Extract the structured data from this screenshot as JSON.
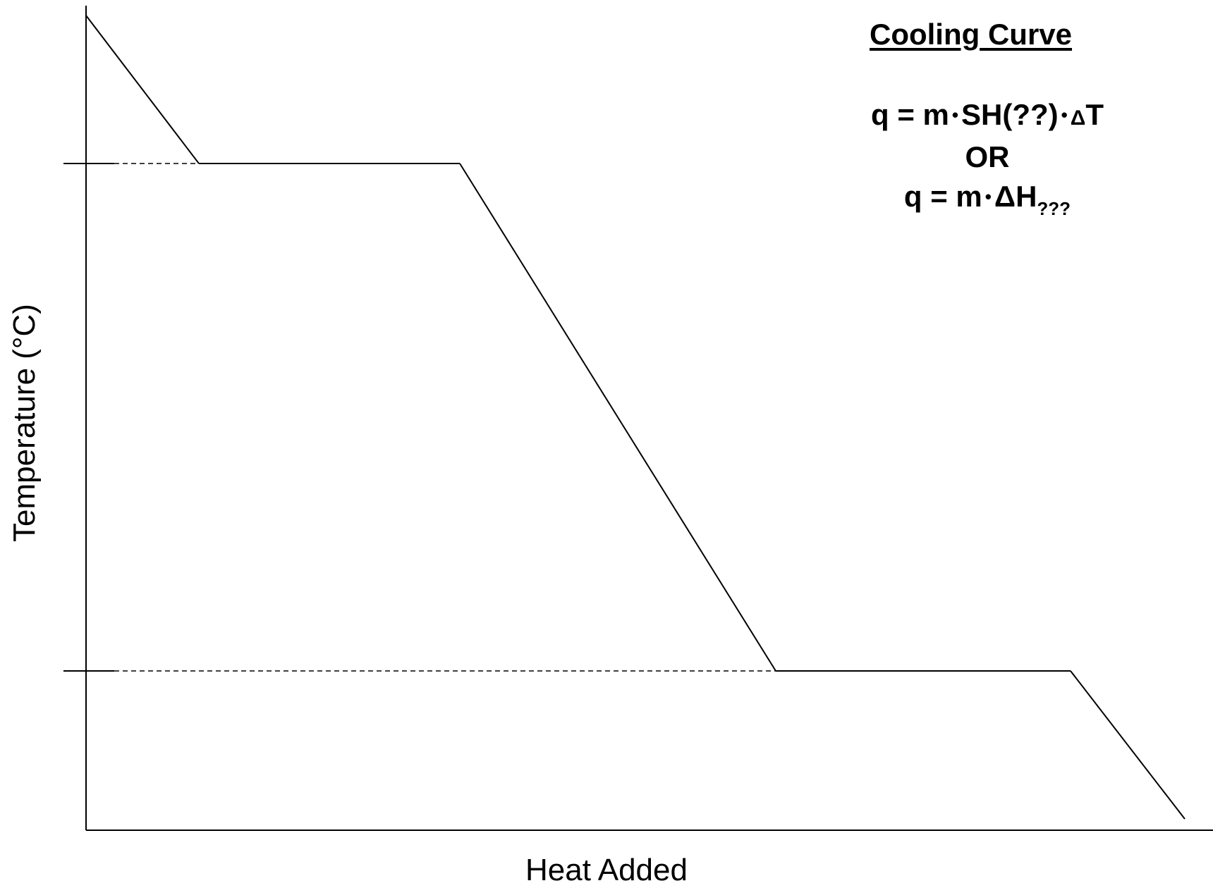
{
  "title": "Cooling Curve",
  "formulas": {
    "line1_parts": [
      "q = m",
      "•",
      "SH(??)",
      "•",
      "Δ",
      "T"
    ],
    "or_text": "OR",
    "line2_parts": [
      "q = m",
      "•",
      "ΔH",
      "???"
    ]
  },
  "axes": {
    "x_label": "Heat Added",
    "y_label": "Temperature (°C)"
  },
  "diagram": {
    "curve_segments": [
      {
        "name": "liquid-cooling-segment",
        "direction": "down"
      },
      {
        "name": "upper-plateau-segment",
        "direction": "flat"
      },
      {
        "name": "middle-cooling-segment",
        "direction": "down"
      },
      {
        "name": "lower-plateau-segment",
        "direction": "flat"
      },
      {
        "name": "solid-cooling-segment",
        "direction": "down"
      }
    ],
    "reference_lines": [
      "upper-dashed-line",
      "lower-dashed-line"
    ],
    "line_color": "#000000",
    "background": "#ffffff"
  }
}
